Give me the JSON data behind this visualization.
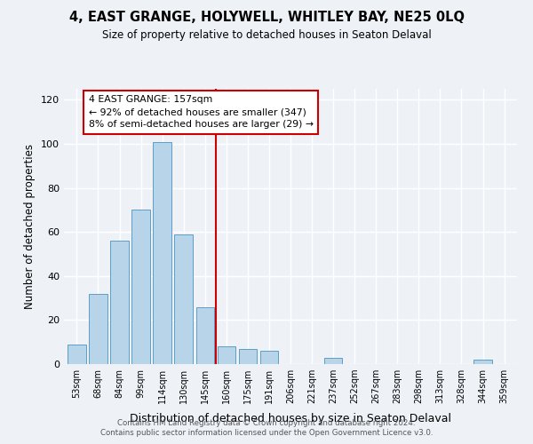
{
  "title": "4, EAST GRANGE, HOLYWELL, WHITLEY BAY, NE25 0LQ",
  "subtitle": "Size of property relative to detached houses in Seaton Delaval",
  "xlabel": "Distribution of detached houses by size in Seaton Delaval",
  "ylabel": "Number of detached properties",
  "bar_labels": [
    "53sqm",
    "68sqm",
    "84sqm",
    "99sqm",
    "114sqm",
    "130sqm",
    "145sqm",
    "160sqm",
    "175sqm",
    "191sqm",
    "206sqm",
    "221sqm",
    "237sqm",
    "252sqm",
    "267sqm",
    "283sqm",
    "298sqm",
    "313sqm",
    "328sqm",
    "344sqm",
    "359sqm"
  ],
  "bar_values": [
    9,
    32,
    56,
    70,
    101,
    59,
    26,
    8,
    7,
    6,
    0,
    0,
    3,
    0,
    0,
    0,
    0,
    0,
    0,
    2,
    0
  ],
  "bar_color": "#b8d4e8",
  "bar_edge_color": "#5b9ec9",
  "ref_bin_index": 7,
  "annotation_title": "4 EAST GRANGE: 157sqm",
  "annotation_line1": "← 92% of detached houses are smaller (347)",
  "annotation_line2": "8% of semi-detached houses are larger (29) →",
  "annotation_box_color": "#ffffff",
  "annotation_box_edge": "#cc0000",
  "ylim": [
    0,
    125
  ],
  "yticks": [
    0,
    20,
    40,
    60,
    80,
    100,
    120
  ],
  "footer1": "Contains HM Land Registry data © Crown copyright and database right 2024.",
  "footer2": "Contains public sector information licensed under the Open Government Licence v3.0.",
  "background_color": "#eef2f7",
  "grid_color": "#ffffff",
  "ref_line_color": "#cc0000"
}
